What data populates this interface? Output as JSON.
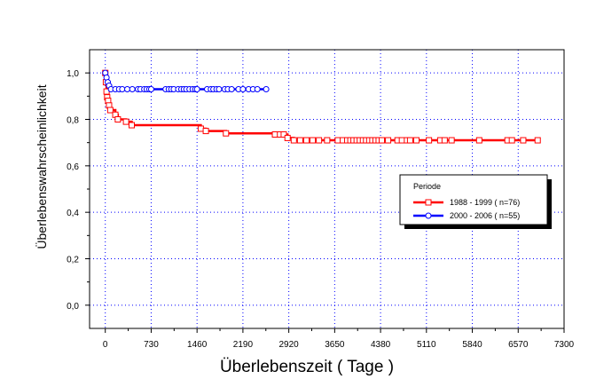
{
  "chart_data": {
    "type": "line",
    "step": true,
    "xlabel": "Überlebenszeit ( Tage )",
    "ylabel": "Überlebenswahrscheinlichkeit",
    "xlim": [
      -250,
      7300
    ],
    "ylim": [
      -0.1,
      1.1
    ],
    "xticks": [
      0,
      730,
      1460,
      2190,
      2920,
      3650,
      4380,
      5110,
      5840,
      6570,
      7300
    ],
    "xtick_labels": [
      "0",
      "730",
      "1460",
      "2190",
      "2920",
      "3650",
      "4380",
      "5110",
      "5840",
      "6570",
      "7300"
    ],
    "yticks": [
      0.0,
      0.2,
      0.4,
      0.6,
      0.8,
      1.0
    ],
    "ytick_labels": [
      "0,0",
      "0,2",
      "0,4",
      "0,6",
      "0,8",
      "1,0"
    ],
    "grid": true,
    "legend": {
      "title": "Periode",
      "placement": "right"
    },
    "series": [
      {
        "name": "1988 - 1999 ( n=76)",
        "color": "#ff0000",
        "marker": "square",
        "steps": [
          [
            0,
            1.0
          ],
          [
            10,
            0.96
          ],
          [
            20,
            0.92
          ],
          [
            30,
            0.895
          ],
          [
            45,
            0.88
          ],
          [
            60,
            0.86
          ],
          [
            80,
            0.84
          ],
          [
            160,
            0.82
          ],
          [
            200,
            0.8
          ],
          [
            330,
            0.79
          ],
          [
            420,
            0.775
          ],
          [
            1520,
            0.76
          ],
          [
            1600,
            0.75
          ],
          [
            1920,
            0.74
          ],
          [
            2750,
            0.735
          ],
          [
            2900,
            0.72
          ],
          [
            3000,
            0.71
          ],
          [
            6880,
            0.71
          ]
        ],
        "markers": [
          [
            0,
            1.0
          ],
          [
            10,
            0.96
          ],
          [
            20,
            0.92
          ],
          [
            30,
            0.895
          ],
          [
            45,
            0.88
          ],
          [
            60,
            0.86
          ],
          [
            80,
            0.84
          ],
          [
            160,
            0.82
          ],
          [
            200,
            0.8
          ],
          [
            330,
            0.79
          ],
          [
            420,
            0.775
          ],
          [
            1520,
            0.76
          ],
          [
            1600,
            0.75
          ],
          [
            1920,
            0.74
          ],
          [
            2700,
            0.735
          ],
          [
            2780,
            0.735
          ],
          [
            2840,
            0.735
          ],
          [
            2900,
            0.72
          ],
          [
            3000,
            0.71
          ],
          [
            3100,
            0.71
          ],
          [
            3200,
            0.71
          ],
          [
            3300,
            0.71
          ],
          [
            3400,
            0.71
          ],
          [
            3530,
            0.71
          ],
          [
            3700,
            0.71
          ],
          [
            3780,
            0.71
          ],
          [
            3850,
            0.71
          ],
          [
            3900,
            0.71
          ],
          [
            3950,
            0.71
          ],
          [
            4000,
            0.71
          ],
          [
            4050,
            0.71
          ],
          [
            4100,
            0.71
          ],
          [
            4150,
            0.71
          ],
          [
            4200,
            0.71
          ],
          [
            4250,
            0.71
          ],
          [
            4300,
            0.71
          ],
          [
            4350,
            0.71
          ],
          [
            4400,
            0.71
          ],
          [
            4500,
            0.71
          ],
          [
            4650,
            0.71
          ],
          [
            4720,
            0.71
          ],
          [
            4800,
            0.71
          ],
          [
            4850,
            0.71
          ],
          [
            4950,
            0.71
          ],
          [
            5150,
            0.71
          ],
          [
            5330,
            0.71
          ],
          [
            5400,
            0.71
          ],
          [
            5510,
            0.71
          ],
          [
            5950,
            0.71
          ],
          [
            6400,
            0.71
          ],
          [
            6470,
            0.71
          ],
          [
            6650,
            0.71
          ],
          [
            6880,
            0.71
          ]
        ]
      },
      {
        "name": "2000 - 2006 ( n=55)",
        "color": "#0000ff",
        "marker": "circle",
        "steps": [
          [
            0,
            1.0
          ],
          [
            20,
            0.98
          ],
          [
            40,
            0.96
          ],
          [
            60,
            0.945
          ],
          [
            90,
            0.93
          ],
          [
            2560,
            0.93
          ]
        ],
        "markers": [
          [
            0,
            1.0
          ],
          [
            20,
            0.98
          ],
          [
            40,
            0.96
          ],
          [
            60,
            0.945
          ],
          [
            90,
            0.93
          ],
          [
            160,
            0.93
          ],
          [
            220,
            0.93
          ],
          [
            270,
            0.93
          ],
          [
            350,
            0.93
          ],
          [
            430,
            0.93
          ],
          [
            520,
            0.93
          ],
          [
            560,
            0.93
          ],
          [
            620,
            0.93
          ],
          [
            660,
            0.93
          ],
          [
            700,
            0.93
          ],
          [
            730,
            0.93
          ],
          [
            960,
            0.93
          ],
          [
            1010,
            0.93
          ],
          [
            1050,
            0.93
          ],
          [
            1090,
            0.93
          ],
          [
            1160,
            0.93
          ],
          [
            1210,
            0.93
          ],
          [
            1250,
            0.93
          ],
          [
            1290,
            0.93
          ],
          [
            1340,
            0.93
          ],
          [
            1390,
            0.93
          ],
          [
            1430,
            0.93
          ],
          [
            1460,
            0.93
          ],
          [
            1620,
            0.93
          ],
          [
            1680,
            0.93
          ],
          [
            1720,
            0.93
          ],
          [
            1770,
            0.93
          ],
          [
            1810,
            0.93
          ],
          [
            1900,
            0.93
          ],
          [
            1950,
            0.93
          ],
          [
            2010,
            0.93
          ],
          [
            2120,
            0.93
          ],
          [
            2190,
            0.93
          ],
          [
            2280,
            0.93
          ],
          [
            2350,
            0.93
          ],
          [
            2420,
            0.93
          ],
          [
            2560,
            0.93
          ]
        ]
      }
    ]
  }
}
